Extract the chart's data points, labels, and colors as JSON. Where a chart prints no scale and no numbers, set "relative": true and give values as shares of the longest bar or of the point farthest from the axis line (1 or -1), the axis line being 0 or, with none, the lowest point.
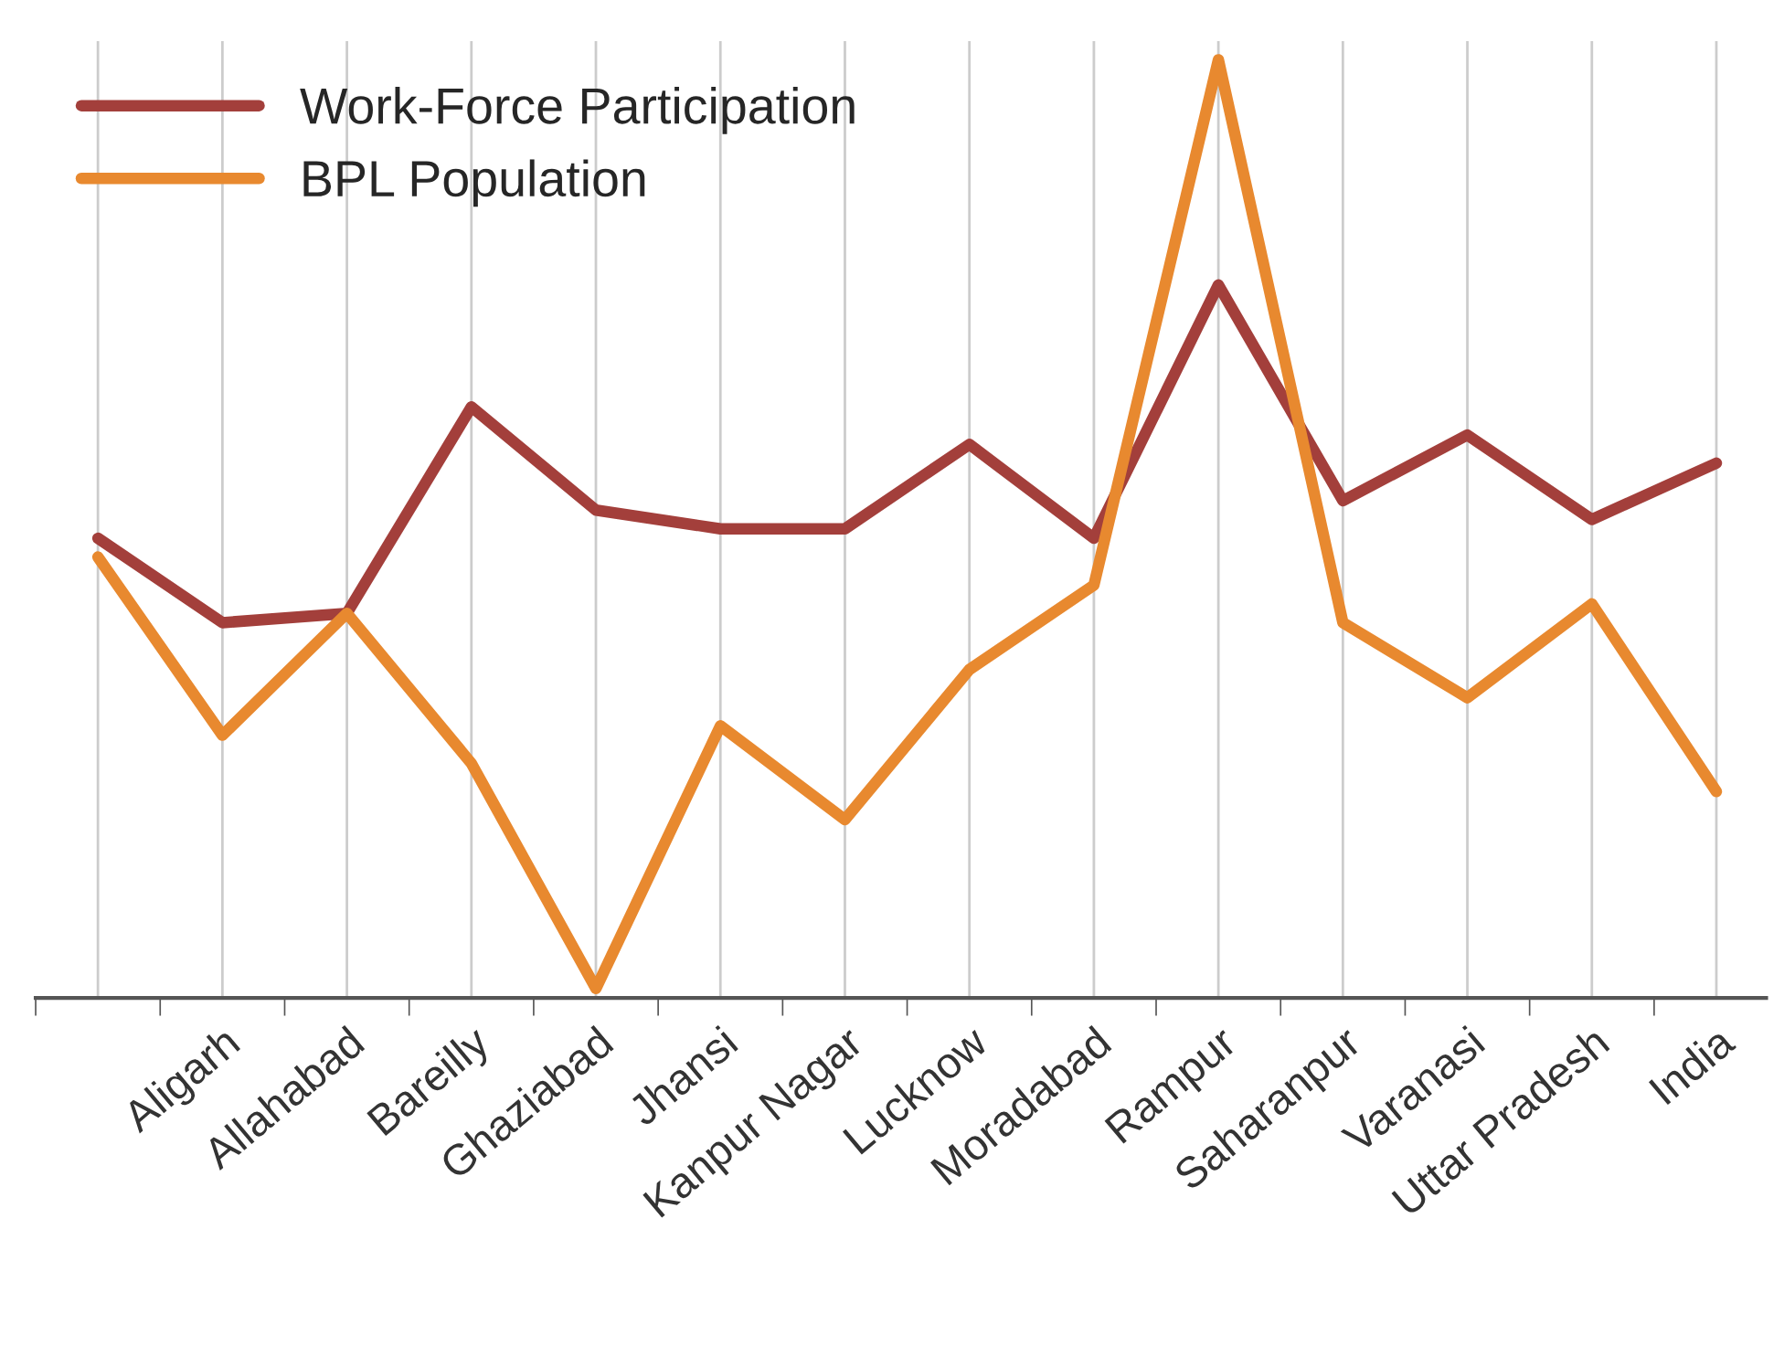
{
  "chart_data": {
    "type": "line",
    "relative": true,
    "categories": [
      null,
      "Aligarh",
      "Allahabad",
      "Bareilly",
      "Ghaziabad",
      "Jhansi",
      "Kanpur Nagar",
      "Lucknow",
      "Moradabad",
      "Rampur",
      "Saharanpur",
      "Varanasi",
      "Uttar Pradesh",
      "India"
    ],
    "series": [
      {
        "name": "Work-Force Participation",
        "color": "#a33f3b",
        "values": [
          0.49,
          0.4,
          0.41,
          0.63,
          0.52,
          0.5,
          0.5,
          0.59,
          0.49,
          0.76,
          0.53,
          0.6,
          0.51,
          0.57
        ]
      },
      {
        "name": "BPL Population",
        "color": "#e8892f",
        "values": [
          0.47,
          0.28,
          0.41,
          0.25,
          0.01,
          0.29,
          0.19,
          0.35,
          0.44,
          1,
          0.4,
          0.32,
          0.42,
          0.22
        ]
      }
    ],
    "grid": "x",
    "legend": "top left",
    "marker": "none",
    "line_style": "solid"
  }
}
